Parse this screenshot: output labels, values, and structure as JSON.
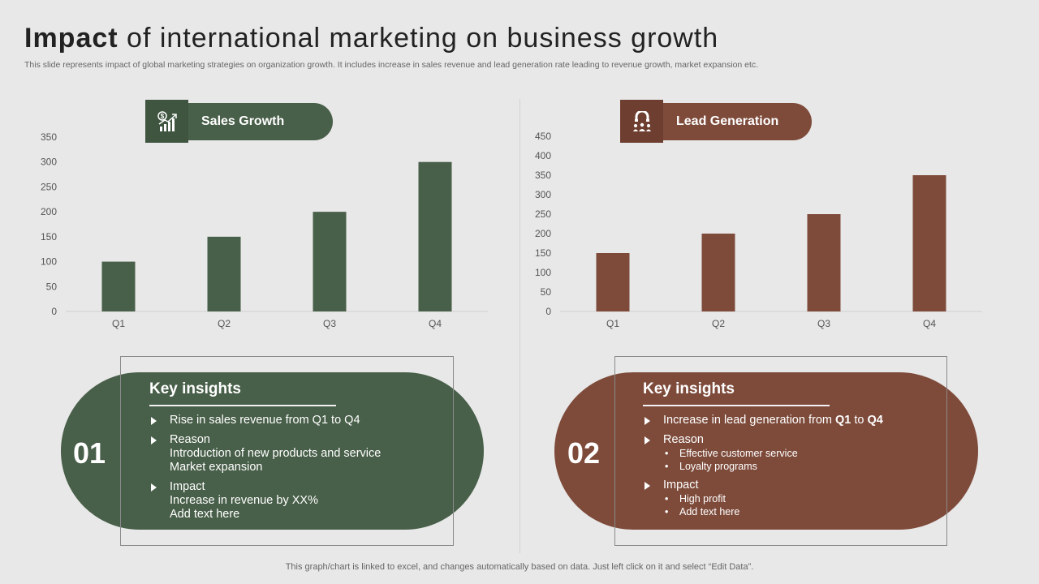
{
  "header": {
    "title_bold": "Impact",
    "title_rest": "of international marketing on business growth",
    "subtitle": "This slide represents impact of global marketing strategies on organization growth. It includes increase in sales revenue and lead generation rate leading to revenue growth, market expansion etc."
  },
  "colors": {
    "green": "#485f49",
    "brown": "#7e4b3b"
  },
  "left": {
    "pill_label": "Sales Growth",
    "icon": "dollar-growth-chart-icon",
    "number": "01",
    "insights_title": "Key insights",
    "items": [
      {
        "text": "Rise in sales revenue from Q1 to Q4"
      },
      {
        "text": "Reason",
        "lines": [
          "Introduction of new products and service",
          "Market expansion"
        ]
      },
      {
        "text": "Impact",
        "lines": [
          "Increase in revenue by XX%",
          "Add text here"
        ]
      }
    ]
  },
  "right": {
    "pill_label": "Lead Generation",
    "icon": "lead-magnet-icon",
    "number": "02",
    "insights_title": "Key insights",
    "items": [
      {
        "text_pre": "Increase in lead generation from ",
        "bold1": "Q1",
        "mid": " to ",
        "bold2": "Q4"
      },
      {
        "text": "Reason",
        "subs": [
          "Effective customer service",
          "Loyalty programs"
        ]
      },
      {
        "text": "Impact",
        "subs": [
          "High profit",
          "Add text here"
        ]
      }
    ]
  },
  "chart_data": [
    {
      "type": "bar",
      "categories": [
        "Q1",
        "Q2",
        "Q3",
        "Q4"
      ],
      "values": [
        100,
        150,
        200,
        300
      ],
      "ylim": [
        0,
        350
      ],
      "yticks": [
        0,
        50,
        100,
        150,
        200,
        250,
        300,
        350
      ],
      "color": "#485f49",
      "grid": false
    },
    {
      "type": "bar",
      "categories": [
        "Q1",
        "Q2",
        "Q3",
        "Q4"
      ],
      "values": [
        150,
        200,
        250,
        350
      ],
      "ylim": [
        0,
        450
      ],
      "yticks": [
        0,
        50,
        100,
        150,
        200,
        250,
        300,
        350,
        400,
        450
      ],
      "color": "#7e4b3b",
      "grid": false
    }
  ],
  "footer": "This graph/chart is linked to excel,  and changes automatically based on data. Just left click on it and select “Edit Data”."
}
